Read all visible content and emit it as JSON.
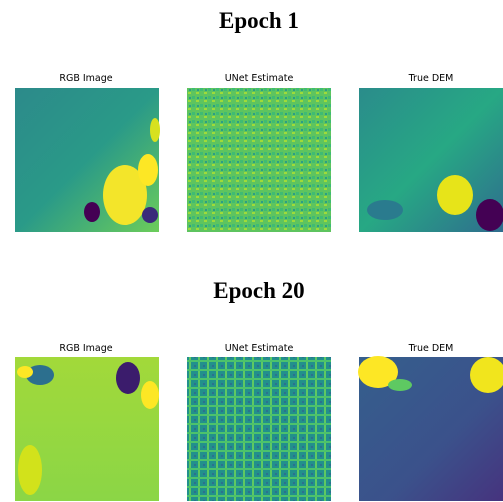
{
  "sections": [
    {
      "title": "Epoch 1",
      "panels": [
        "RGB Image",
        "UNet Estimate",
        "True DEM"
      ]
    },
    {
      "title": "Epoch 20",
      "panels": [
        "RGB Image",
        "UNet Estimate",
        "True DEM"
      ]
    }
  ]
}
